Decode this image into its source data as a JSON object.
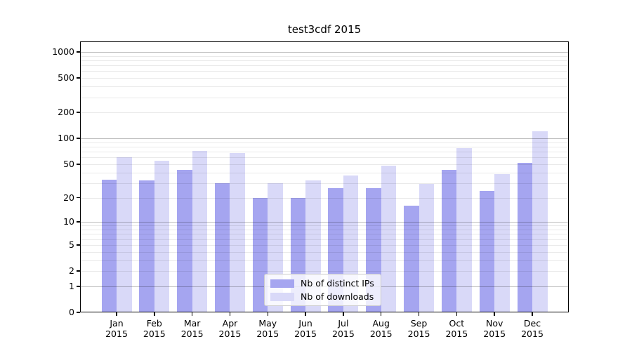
{
  "chart_data": {
    "type": "bar",
    "title": "test3cdf 2015",
    "categories": [
      "Jan",
      "Feb",
      "Mar",
      "Apr",
      "May",
      "Jun",
      "Jul",
      "Aug",
      "Sep",
      "Oct",
      "Nov",
      "Dec"
    ],
    "category_second_line": "2015",
    "series": [
      {
        "name": "Nb of distinct IPs",
        "color": "#a5a5f0",
        "values": [
          33,
          32,
          43,
          30,
          20,
          20,
          26,
          26,
          16,
          43,
          24,
          52
        ]
      },
      {
        "name": "Nb of downloads",
        "color": "#d9d9f8",
        "values": [
          60,
          55,
          72,
          68,
          30,
          32,
          37,
          48,
          29,
          77,
          38,
          120
        ]
      }
    ],
    "y_axis": {
      "scale": "log10(1+x)",
      "tick_labels": [
        0,
        1,
        2,
        5,
        10,
        20,
        50,
        100,
        200,
        500,
        1000
      ],
      "major_gridlines": [
        1,
        10,
        100,
        1000
      ],
      "minor_gridlines": [
        2,
        3,
        4,
        5,
        6,
        7,
        8,
        9,
        20,
        30,
        40,
        50,
        60,
        70,
        80,
        90,
        200,
        300,
        400,
        500,
        600,
        700,
        800,
        900
      ],
      "ylim": [
        0,
        1320
      ]
    },
    "xlabel": "",
    "ylabel": "",
    "grid": "horizontal",
    "legend": {
      "position": "lower center",
      "entries": [
        "Nb of distinct IPs",
        "Nb of downloads"
      ]
    }
  }
}
